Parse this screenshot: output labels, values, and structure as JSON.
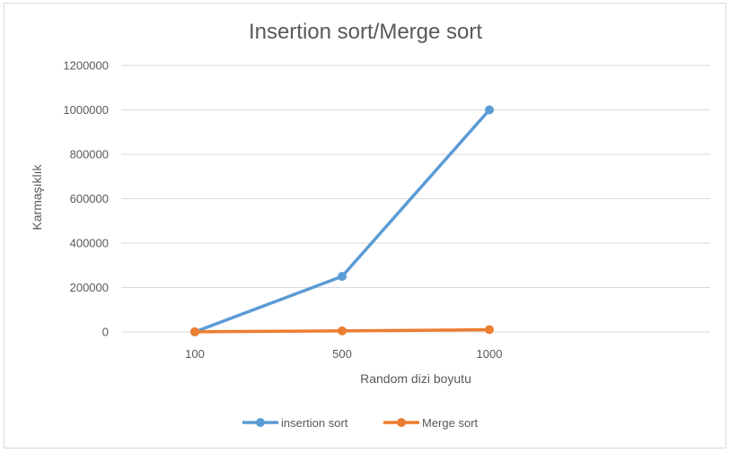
{
  "chart_data": {
    "type": "line",
    "title": "Insertion sort/Merge sort",
    "xlabel": "Random dizi boyutu",
    "ylabel": "Karmaşıklık",
    "categories": [
      "100",
      "500",
      "1000"
    ],
    "ylim": [
      0,
      1200000
    ],
    "yticks": [
      0,
      200000,
      400000,
      600000,
      800000,
      1000000,
      1200000
    ],
    "grid": true,
    "legend_position": "bottom",
    "series": [
      {
        "name": "insertion sort",
        "color": "#5b9bd5",
        "values": [
          0,
          250000,
          1000000
        ]
      },
      {
        "name": "Merge sort",
        "color": "#ed7d31",
        "values": [
          700,
          4500,
          10000
        ]
      }
    ]
  }
}
